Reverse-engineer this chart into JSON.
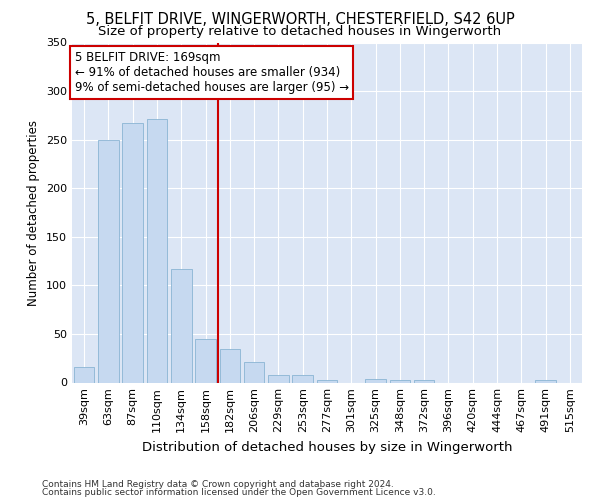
{
  "title1": "5, BELFIT DRIVE, WINGERWORTH, CHESTERFIELD, S42 6UP",
  "title2": "Size of property relative to detached houses in Wingerworth",
  "xlabel": "Distribution of detached houses by size in Wingerworth",
  "ylabel": "Number of detached properties",
  "footnote1": "Contains HM Land Registry data © Crown copyright and database right 2024.",
  "footnote2": "Contains public sector information licensed under the Open Government Licence v3.0.",
  "categories": [
    "39sqm",
    "63sqm",
    "87sqm",
    "110sqm",
    "134sqm",
    "158sqm",
    "182sqm",
    "206sqm",
    "229sqm",
    "253sqm",
    "277sqm",
    "301sqm",
    "325sqm",
    "348sqm",
    "372sqm",
    "396sqm",
    "420sqm",
    "444sqm",
    "467sqm",
    "491sqm",
    "515sqm"
  ],
  "values": [
    16,
    250,
    267,
    271,
    117,
    45,
    35,
    21,
    8,
    8,
    3,
    0,
    4,
    3,
    3,
    0,
    0,
    0,
    0,
    3,
    0
  ],
  "bar_color": "#c6d9f0",
  "bar_edge_color": "#8ab4d4",
  "vline_x": 5.5,
  "vline_color": "#cc0000",
  "annotation_title": "5 BELFIT DRIVE: 169sqm",
  "annotation_line1": "← 91% of detached houses are smaller (934)",
  "annotation_line2": "9% of semi-detached houses are larger (95) →",
  "annotation_box_color": "#cc0000",
  "annotation_bg": "#ffffff",
  "ylim": [
    0,
    350
  ],
  "yticks": [
    0,
    50,
    100,
    150,
    200,
    250,
    300,
    350
  ],
  "background_color": "#dce6f5",
  "grid_color": "#ffffff",
  "fig_bg": "#ffffff",
  "title1_fontsize": 10.5,
  "title2_fontsize": 9.5,
  "xlabel_fontsize": 9.5,
  "ylabel_fontsize": 8.5,
  "tick_fontsize": 8,
  "annot_fontsize": 8.5,
  "footnote_fontsize": 6.5
}
